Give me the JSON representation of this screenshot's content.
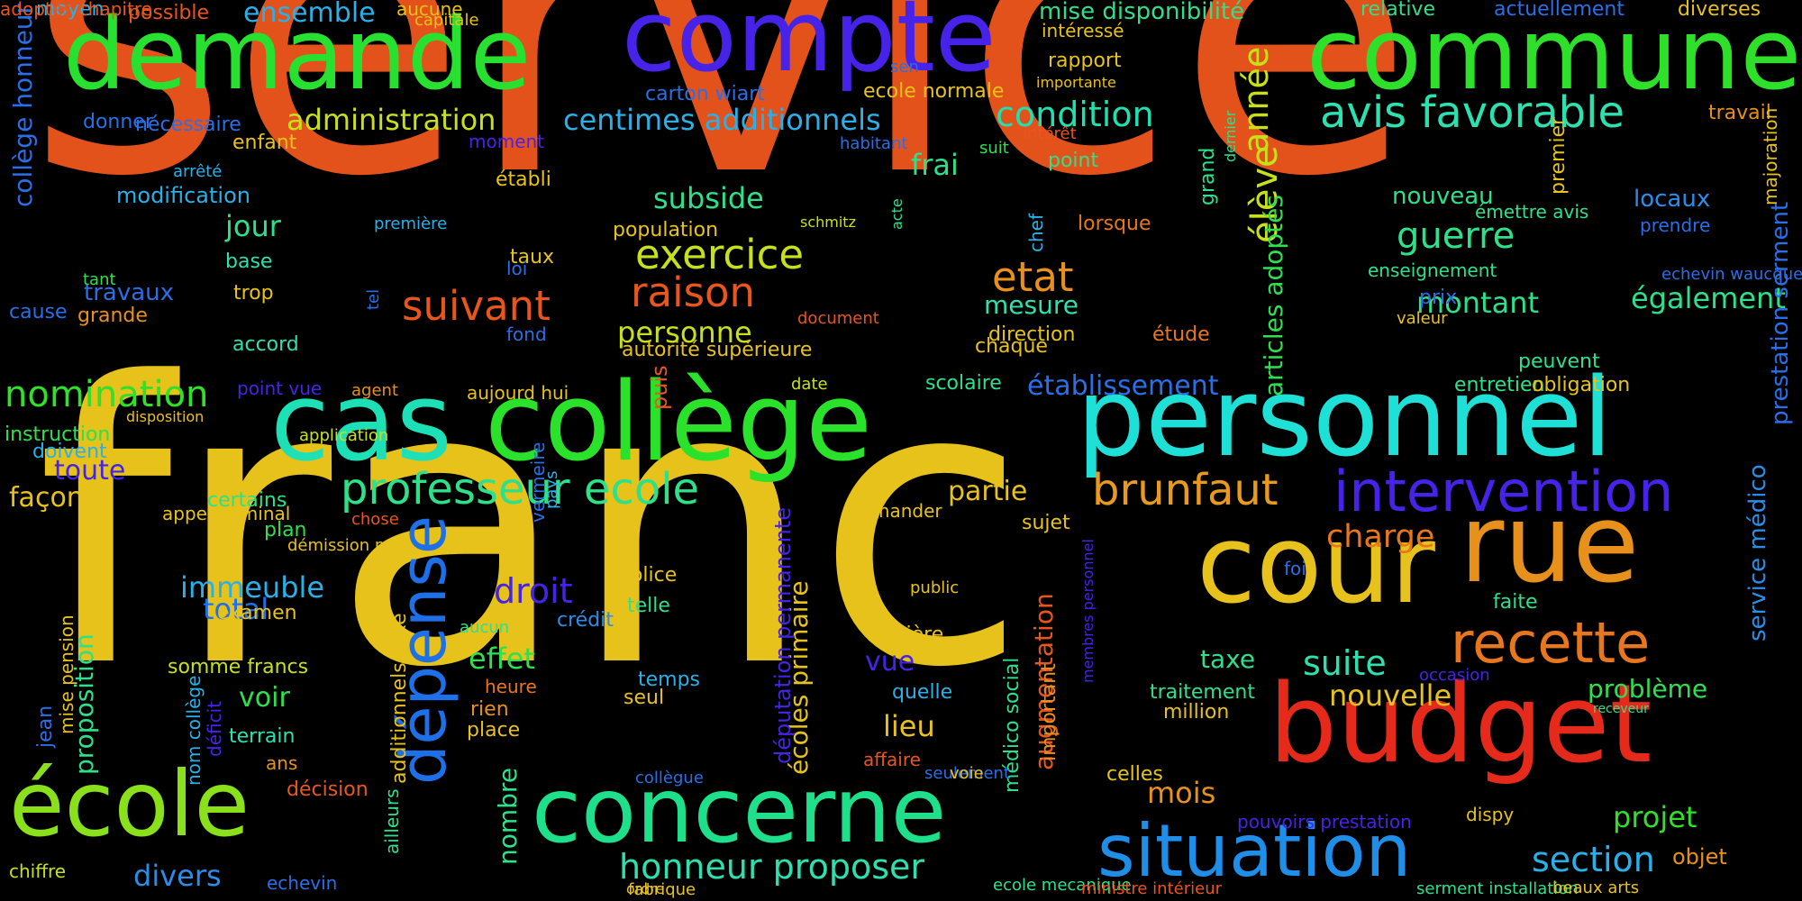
{
  "words": [
    {
      "text": "service",
      "color": "#e4521b"
    },
    {
      "text": "franc",
      "color": "#e6c21a"
    },
    {
      "text": "compte",
      "color": "#4722e8"
    },
    {
      "text": "demande",
      "color": "#28e030"
    },
    {
      "text": "commune",
      "color": "#2fe02a"
    },
    {
      "text": "cas",
      "color": "#1ee0b6"
    },
    {
      "text": "collège",
      "color": "#2ae22a"
    },
    {
      "text": "personnel",
      "color": "#1ee0d6"
    },
    {
      "text": "cour",
      "color": "#e8c21c"
    },
    {
      "text": "rue",
      "color": "#e8901c"
    },
    {
      "text": "budget",
      "color": "#e52a1b"
    },
    {
      "text": "école",
      "color": "#8ae01a"
    },
    {
      "text": "concerne",
      "color": "#1ee08a"
    },
    {
      "text": "situation",
      "color": "#1e8ee8"
    },
    {
      "text": "dépense",
      "color": "#1e70e8"
    },
    {
      "text": "intervention",
      "color": "#4722e8"
    },
    {
      "text": "recette",
      "color": "#e8761c"
    },
    {
      "text": "brunfaut",
      "color": "#e89a1c"
    },
    {
      "text": "professeur ecole",
      "color": "#2ee08a"
    },
    {
      "text": "avis favorable",
      "color": "#2ee0b0"
    },
    {
      "text": "administration",
      "color": "#c8e01a"
    },
    {
      "text": "centimes additionnels",
      "color": "#2ab0e8"
    },
    {
      "text": "condition",
      "color": "#1ee0b0"
    },
    {
      "text": "nomination",
      "color": "#30e02a"
    },
    {
      "text": "exercice",
      "color": "#c8e01a"
    },
    {
      "text": "raison",
      "color": "#e8561c"
    },
    {
      "text": "suivant",
      "color": "#e8561c"
    },
    {
      "text": "etat",
      "color": "#e8901c"
    },
    {
      "text": "guerre",
      "color": "#2ee08a"
    },
    {
      "text": "montant",
      "color": "#2ee08a"
    },
    {
      "text": "élève",
      "color": "#c8e01a"
    },
    {
      "text": "année",
      "color": "#c8e01a"
    },
    {
      "text": "articles adoptés",
      "color": "#2ee050"
    },
    {
      "text": "charge",
      "color": "#e8761c"
    },
    {
      "text": "droit",
      "color": "#4722e8"
    },
    {
      "text": "effet",
      "color": "#2ee050"
    },
    {
      "text": "immeuble",
      "color": "#2ab0e8"
    },
    {
      "text": "total",
      "color": "#1e70e8"
    },
    {
      "text": "suite",
      "color": "#2ee0b0"
    },
    {
      "text": "taxe",
      "color": "#2ee08a"
    },
    {
      "text": "nouvelle",
      "color": "#e8c21c"
    },
    {
      "text": "problème",
      "color": "#2ee050"
    },
    {
      "text": "section",
      "color": "#2ab0e8"
    },
    {
      "text": "projet",
      "color": "#30e02a"
    },
    {
      "text": "honneur proposer",
      "color": "#2ee0b0"
    },
    {
      "text": "divers",
      "color": "#2a8ee8"
    },
    {
      "text": "mois",
      "color": "#e8901c"
    },
    {
      "text": "vue",
      "color": "#4722e8"
    },
    {
      "text": "lieu",
      "color": "#e8c21c"
    },
    {
      "text": "voir",
      "color": "#2ee050"
    },
    {
      "text": "personne",
      "color": "#c8e01a"
    },
    {
      "text": "subside",
      "color": "#2ee08a"
    },
    {
      "text": "mesure",
      "color": "#2ee0b0"
    },
    {
      "text": "jour",
      "color": "#2ee08a"
    },
    {
      "text": "frai",
      "color": "#2ee08a"
    },
    {
      "text": "partie",
      "color": "#e8c21c"
    },
    {
      "text": "façon",
      "color": "#e8c21c"
    },
    {
      "text": "toute",
      "color": "#4722e8"
    },
    {
      "text": "établissement",
      "color": "#2a6ee8"
    },
    {
      "text": "également",
      "color": "#2ee08a"
    },
    {
      "text": "modification",
      "color": "#2ab0e8"
    },
    {
      "text": "ensemble",
      "color": "#2ab0e8"
    },
    {
      "text": "mise disponibilité",
      "color": "#2ee08a"
    },
    {
      "text": "nouveau",
      "color": "#2ee08a"
    },
    {
      "text": "locaux",
      "color": "#2a8ee8"
    },
    {
      "text": "travaux",
      "color": "#2a6ee8"
    },
    {
      "text": "proposition",
      "color": "#2ee08a"
    },
    {
      "text": "nombre",
      "color": "#2ee08a"
    },
    {
      "text": "écoles primaire",
      "color": "#e8c21c"
    },
    {
      "text": "augmentation",
      "color": "#e8561c"
    },
    {
      "text": "collège honneur",
      "color": "#2a6ee8"
    },
    {
      "text": "prestation serment",
      "color": "#2a6ee8"
    },
    {
      "text": "service médico",
      "color": "#2a8ee8"
    },
    {
      "text": "additionnels taxe",
      "color": "#e8c21c"
    },
    {
      "text": "députation permanente",
      "color": "#4722e8"
    },
    {
      "text": "médico social",
      "color": "#2ee08a"
    },
    {
      "text": "date",
      "color": "#c8e01a"
    },
    {
      "text": "examen",
      "color": "#e8c21c"
    },
    {
      "text": "somme francs",
      "color": "#c8e01a"
    },
    {
      "text": "terrain",
      "color": "#2ee0b0"
    },
    {
      "text": "ans",
      "color": "#e8901c"
    },
    {
      "text": "décision",
      "color": "#e8561c"
    },
    {
      "text": "heure",
      "color": "#e8761c"
    },
    {
      "text": "rien",
      "color": "#e8901c"
    },
    {
      "text": "place",
      "color": "#e8c21c"
    },
    {
      "text": "crédit",
      "color": "#2a8ee8"
    },
    {
      "text": "temps",
      "color": "#2ab0e8"
    },
    {
      "text": "seul",
      "color": "#e8c21c"
    },
    {
      "text": "police",
      "color": "#e8c21c"
    },
    {
      "text": "telle",
      "color": "#2ee08a"
    },
    {
      "text": "matière",
      "color": "#e8c21c"
    },
    {
      "text": "quelle",
      "color": "#2ab0e8"
    },
    {
      "text": "affaire",
      "color": "#e8561c"
    },
    {
      "text": "demander",
      "color": "#e8c21c"
    },
    {
      "text": "sujet",
      "color": "#e8c21c"
    },
    {
      "text": "celles",
      "color": "#e8c21c"
    },
    {
      "text": "traitement",
      "color": "#2ee08a"
    },
    {
      "text": "million",
      "color": "#e8c21c"
    },
    {
      "text": "faite",
      "color": "#2ee08a"
    },
    {
      "text": "foi",
      "color": "#2a6ee8"
    },
    {
      "text": "important",
      "color": "#e8901c"
    },
    {
      "text": "dispy",
      "color": "#e8c21c"
    },
    {
      "text": "objet",
      "color": "#e8901c"
    },
    {
      "text": "entretien",
      "color": "#2ee08a"
    },
    {
      "text": "obligation",
      "color": "#e8c21c"
    },
    {
      "text": "peuvent",
      "color": "#2ee08a"
    },
    {
      "text": "direction",
      "color": "#e8c21c"
    },
    {
      "text": "étude",
      "color": "#e8761c"
    },
    {
      "text": "chaque",
      "color": "#e8c21c"
    },
    {
      "text": "prix",
      "color": "#2a6ee8"
    },
    {
      "text": "scolaire",
      "color": "#2ee08a"
    },
    {
      "text": "autorité supérieure",
      "color": "#e8c21c"
    },
    {
      "text": "population",
      "color": "#e8c21c"
    },
    {
      "text": "taux",
      "color": "#e8c21c"
    },
    {
      "text": "établi",
      "color": "#e8c21c"
    },
    {
      "text": "loi",
      "color": "#2a6ee8"
    },
    {
      "text": "fond",
      "color": "#2a6ee8"
    },
    {
      "text": "aujourd hui",
      "color": "#e8c21c"
    },
    {
      "text": "appel nominal",
      "color": "#e8c21c"
    },
    {
      "text": "plan",
      "color": "#2ee050"
    },
    {
      "text": "certains",
      "color": "#2ee08a"
    },
    {
      "text": "accord",
      "color": "#2ee0b0"
    },
    {
      "text": "point vue",
      "color": "#4722e8"
    },
    {
      "text": "base",
      "color": "#2ee0b0"
    },
    {
      "text": "trop",
      "color": "#e8c21c"
    },
    {
      "text": "grande",
      "color": "#e8901c"
    },
    {
      "text": "cause",
      "color": "#2a6ee8"
    },
    {
      "text": "tant",
      "color": "#2ee050"
    },
    {
      "text": "instruction",
      "color": "#2ee050"
    },
    {
      "text": "doivent",
      "color": "#2ab0e8"
    },
    {
      "text": "enfant",
      "color": "#e8c21c"
    },
    {
      "text": "nécessaire",
      "color": "#2a6ee8"
    },
    {
      "text": "donner",
      "color": "#2a6ee8"
    },
    {
      "text": "moyen",
      "color": "#2ab0e8"
    },
    {
      "text": "possible",
      "color": "#e8561c"
    },
    {
      "text": "aucune",
      "color": "#e8c21c"
    },
    {
      "text": "capitale",
      "color": "#e8c21c"
    },
    {
      "text": "carton wiart",
      "color": "#2a6ee8"
    },
    {
      "text": "ecole normale",
      "color": "#e8c21c"
    },
    {
      "text": "sen",
      "color": "#2a6ee8"
    },
    {
      "text": "rapport",
      "color": "#e8c21c"
    },
    {
      "text": "intéressé",
      "color": "#e8c21c"
    },
    {
      "text": "importante",
      "color": "#e8c21c"
    },
    {
      "text": "relative",
      "color": "#2ee08a"
    },
    {
      "text": "actuellement",
      "color": "#2a6ee8"
    },
    {
      "text": "diverses",
      "color": "#e8c21c"
    },
    {
      "text": "travail",
      "color": "#e8901c"
    },
    {
      "text": "moment",
      "color": "#4722e8"
    },
    {
      "text": "habitant",
      "color": "#2a6ee8"
    },
    {
      "text": "suit",
      "color": "#2ee050"
    },
    {
      "text": "intérêt",
      "color": "#e8561c"
    },
    {
      "text": "point",
      "color": "#2ee08a"
    },
    {
      "text": "lorsque",
      "color": "#e8761c"
    },
    {
      "text": "arrêté",
      "color": "#2ab0e8"
    },
    {
      "text": "première",
      "color": "#2ab0e8"
    },
    {
      "text": "schmitz",
      "color": "#c8e01a"
    },
    {
      "text": "acte",
      "color": "#2ee08a"
    },
    {
      "text": "tel",
      "color": "#2a6ee8"
    },
    {
      "text": "chef",
      "color": "#2ab0e8"
    },
    {
      "text": "grand",
      "color": "#2ee08a"
    },
    {
      "text": "dernier",
      "color": "#2ee08a"
    },
    {
      "text": "émettre avis",
      "color": "#2ee08a"
    },
    {
      "text": "premier",
      "color": "#e8c21c"
    },
    {
      "text": "prendre",
      "color": "#2a6ee8"
    },
    {
      "text": "majoration",
      "color": "#e8c21c"
    },
    {
      "text": "enseignement",
      "color": "#2ee08a"
    },
    {
      "text": "echevin waucquez",
      "color": "#2a6ee8"
    },
    {
      "text": "valeur",
      "color": "#e8c21c"
    },
    {
      "text": "document",
      "color": "#e8561c"
    },
    {
      "text": "agent",
      "color": "#e8901c"
    },
    {
      "text": "disposition",
      "color": "#e8c21c"
    },
    {
      "text": "application",
      "color": "#c8e01a"
    },
    {
      "text": "puis",
      "color": "#e8561c"
    },
    {
      "text": "chose",
      "color": "#e8561c"
    },
    {
      "text": "démission mise",
      "color": "#e8c21c"
    },
    {
      "text": "pays",
      "color": "#2ab0e8"
    },
    {
      "text": "vermeire",
      "color": "#2a6ee8"
    },
    {
      "text": "public",
      "color": "#e8c21c"
    },
    {
      "text": "aucun",
      "color": "#2ee08a"
    },
    {
      "text": "jean",
      "color": "#2a6ee8"
    },
    {
      "text": "mise pension",
      "color": "#e8c21c"
    },
    {
      "text": "nom collège",
      "color": "#2ab0e8"
    },
    {
      "text": "déficit",
      "color": "#4722e8"
    },
    {
      "text": "ailleurs",
      "color": "#2ee08a"
    },
    {
      "text": "chiffre",
      "color": "#c8e01a"
    },
    {
      "text": "echevin",
      "color": "#2a6ee8"
    },
    {
      "text": "collègue",
      "color": "#2a6ee8"
    },
    {
      "text": "seulement",
      "color": "#2a6ee8"
    },
    {
      "text": "voie",
      "color": "#e8c21c"
    },
    {
      "text": "ecole mecanique",
      "color": "#2ee08a"
    },
    {
      "text": "fabrique",
      "color": "#e8c21c"
    },
    {
      "text": "ordre",
      "color": "#e8c21c"
    },
    {
      "text": "ministre intérieur",
      "color": "#e8561c"
    },
    {
      "text": "serment installation",
      "color": "#2ee08a"
    },
    {
      "text": "beaux arts",
      "color": "#e8c21c"
    },
    {
      "text": "pouvoirs prestation",
      "color": "#4722e8"
    },
    {
      "text": "occasion",
      "color": "#4722e8"
    },
    {
      "text": "receveur",
      "color": "#2ee08a"
    },
    {
      "text": "membres personnel",
      "color": "#4722e8"
    },
    {
      "text": "adoptés chapitre",
      "color": "#e8561c"
    }
  ]
}
